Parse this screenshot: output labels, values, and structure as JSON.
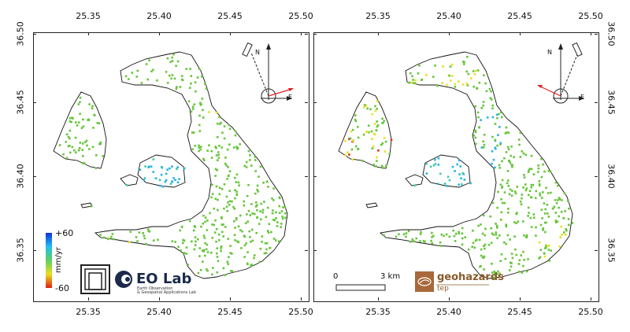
{
  "map": {
    "longitude_ticks": [
      "25.35",
      "25.40",
      "25.45",
      "25.50"
    ],
    "latitude_ticks": [
      "36.50",
      "36.45",
      "36.40",
      "36.35"
    ],
    "lon_range": [
      25.3,
      25.5
    ],
    "lat_range": [
      36.5,
      36.315
    ]
  },
  "left_panel": {
    "colorbar": {
      "max_label": "+60",
      "min_label": "-60",
      "unit": "mm/yr"
    },
    "logo": {
      "name": "EO Lab",
      "subtitle_line1": "Earth Observation",
      "subtitle_line2": "& Geospatial Applications Lab"
    },
    "compass": {
      "north_label": "N",
      "east_label": "E"
    }
  },
  "right_panel": {
    "scale_bar": {
      "start_label": "0",
      "end_label": "3 km"
    },
    "logo": {
      "name": "geohazards",
      "subtitle": "tep"
    },
    "compass": {
      "north_label": "N",
      "east_label": "E"
    }
  },
  "colors": {
    "stable": "#66c63a",
    "uplift": "#28b4e0",
    "subsidence": "#e8e020",
    "strong_subsidence": "#e03020",
    "arrow": "#e02020",
    "eolab_blue": "#1b2a4a",
    "geohazards_brown": "#8a5a2b"
  }
}
